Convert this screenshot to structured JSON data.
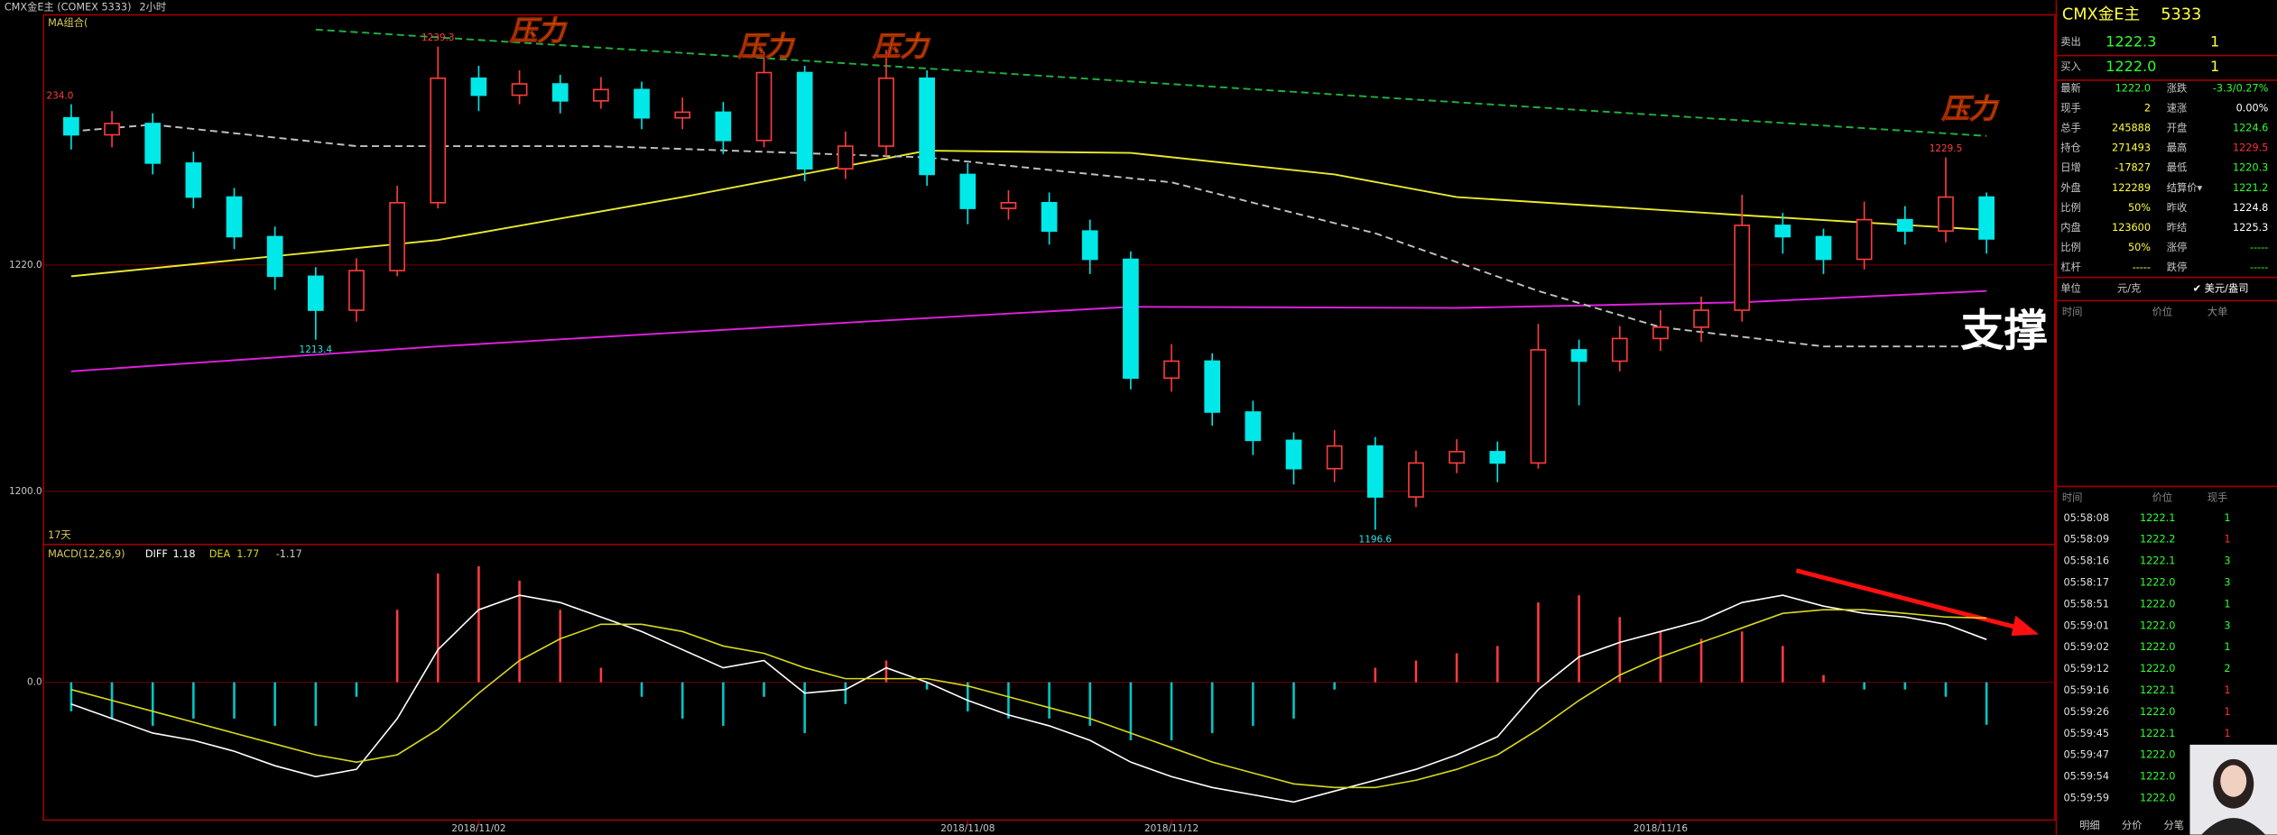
{
  "header": {
    "title": "CMX金E主 (COMEX 5333)",
    "period": "2小时"
  },
  "chart_data": [
    {
      "type": "candlestick",
      "legend_label": "MA组合(",
      "days_label": "17天",
      "side_label": "234.0",
      "ylim": [
        1195.3,
        1242.1
      ],
      "yticks": [
        {
          "value": 1200,
          "label": "1200.0"
        },
        {
          "value": 1220,
          "label": "1220.0"
        }
      ],
      "up_color": "#ff3c3c",
      "down_color": "#00e8e8",
      "categories": [
        null,
        null,
        null,
        null,
        null,
        null,
        null,
        null,
        null,
        null,
        "2018/11/02",
        null,
        null,
        null,
        null,
        null,
        null,
        null,
        null,
        null,
        null,
        null,
        "2018/11/08",
        null,
        null,
        null,
        null,
        "2018/11/12",
        null,
        null,
        null,
        null,
        null,
        null,
        null,
        null,
        null,
        null,
        null,
        "2018/11/16",
        null,
        null,
        null,
        null,
        null,
        null,
        null,
        null
      ],
      "open": [
        1233.0,
        1231.5,
        1232.5,
        1229.0,
        1226.0,
        1222.5,
        1219.0,
        1216.0,
        1219.5,
        1225.5,
        1236.5,
        1235.0,
        1236.0,
        1234.5,
        1235.5,
        1233.0,
        1233.5,
        1231.0,
        1237.0,
        1228.5,
        1230.5,
        1236.5,
        1228.0,
        1225.0,
        1225.5,
        1223.0,
        1220.5,
        1210.0,
        1211.5,
        1207.0,
        1204.5,
        1202.0,
        1204.0,
        1199.5,
        1202.5,
        1203.5,
        1202.5,
        1212.5,
        1211.5,
        1213.5,
        1214.5,
        1216.0,
        1223.5,
        1222.5,
        1220.5,
        1224.0,
        1223.0,
        1226.0
      ],
      "high": [
        1234.2,
        1233.6,
        1233.4,
        1230.0,
        1226.8,
        1223.4,
        1219.8,
        1220.6,
        1227.0,
        1239.3,
        1237.6,
        1237.2,
        1236.8,
        1236.6,
        1236.2,
        1234.8,
        1234.4,
        1238.8,
        1237.6,
        1231.8,
        1239.0,
        1237.2,
        1229.0,
        1226.6,
        1226.4,
        1224.0,
        1221.2,
        1213.0,
        1212.2,
        1208.0,
        1205.2,
        1205.4,
        1204.8,
        1203.6,
        1204.6,
        1204.4,
        1214.8,
        1213.4,
        1214.6,
        1216.0,
        1217.2,
        1226.2,
        1224.6,
        1223.2,
        1225.6,
        1225.2,
        1229.5,
        1226.4
      ],
      "low": [
        1230.2,
        1230.4,
        1228.0,
        1225.0,
        1221.4,
        1217.8,
        1213.4,
        1215.0,
        1219.0,
        1225.0,
        1233.6,
        1234.2,
        1233.4,
        1233.8,
        1232.0,
        1232.0,
        1229.8,
        1230.4,
        1227.4,
        1227.6,
        1229.6,
        1227.0,
        1223.6,
        1224.0,
        1221.8,
        1219.2,
        1209.0,
        1208.8,
        1205.8,
        1203.2,
        1200.6,
        1200.8,
        1196.6,
        1198.6,
        1201.6,
        1200.8,
        1202.0,
        1207.6,
        1210.6,
        1212.4,
        1213.2,
        1215.0,
        1221.0,
        1219.2,
        1219.6,
        1221.8,
        1222.0,
        1221.0
      ],
      "close": [
        1231.5,
        1232.5,
        1229.0,
        1226.0,
        1222.5,
        1219.0,
        1216.0,
        1219.5,
        1225.5,
        1236.5,
        1235.0,
        1236.0,
        1234.5,
        1235.5,
        1233.0,
        1233.5,
        1231.0,
        1237.0,
        1228.5,
        1230.5,
        1236.5,
        1228.0,
        1225.0,
        1225.5,
        1223.0,
        1220.5,
        1210.0,
        1211.5,
        1207.0,
        1204.5,
        1202.0,
        1204.0,
        1199.5,
        1202.5,
        1203.5,
        1202.5,
        1212.5,
        1211.5,
        1213.5,
        1214.5,
        1216.0,
        1223.5,
        1222.5,
        1220.5,
        1224.0,
        1223.0,
        1226.0,
        1222.3
      ],
      "lines": [
        {
          "color": "#e8e830",
          "dash": false,
          "x": [
            0,
            9,
            15,
            21,
            26,
            31,
            34,
            41,
            47
          ],
          "values": [
            1219.0,
            1222.2,
            1226.0,
            1230.1,
            1229.9,
            1228.0,
            1226.0,
            1224.4,
            1223.1
          ]
        },
        {
          "color": "#e020e0",
          "dash": false,
          "x": [
            0,
            9,
            20,
            26,
            34,
            41,
            47
          ],
          "values": [
            1210.6,
            1212.8,
            1215.1,
            1216.3,
            1216.2,
            1216.7,
            1217.7
          ]
        },
        {
          "color": "#c0c0c0",
          "dash": true,
          "x": [
            0,
            2,
            7,
            13,
            21,
            27,
            32,
            36,
            39,
            43,
            47
          ],
          "values": [
            1231.8,
            1232.4,
            1230.5,
            1230.5,
            1229.5,
            1227.3,
            1222.8,
            1217.7,
            1214.5,
            1212.8,
            1212.8
          ]
        },
        {
          "color": "#20b040",
          "dash": true,
          "x": [
            6,
            47
          ],
          "values": [
            1240.8,
            1231.4
          ]
        }
      ],
      "annotations": [
        "压力",
        "压力",
        "压力",
        "压力",
        "支撑"
      ]
    },
    {
      "type": "macd",
      "title": "MACD(12,26,9)",
      "ylim": [
        -3.8,
        3.68
      ],
      "yticks": [
        {
          "value": 0,
          "label": "0.0"
        }
      ],
      "up_color": "#ff3c3c",
      "down_color": "#00c8c8",
      "histogram": [
        -0.8,
        -1.0,
        -1.2,
        -1.0,
        -1.0,
        -1.2,
        -1.2,
        -0.4,
        2.0,
        3.0,
        3.2,
        2.8,
        2.0,
        0.4,
        -0.4,
        -1.0,
        -1.2,
        -0.4,
        -1.4,
        -0.6,
        0.6,
        -0.2,
        -0.8,
        -1.0,
        -1.0,
        -1.2,
        -1.6,
        -1.6,
        -1.4,
        -1.2,
        -1.0,
        -0.2,
        0.4,
        0.6,
        0.8,
        1.0,
        2.2,
        2.4,
        1.8,
        1.4,
        1.2,
        1.4,
        1.0,
        0.2,
        -0.2,
        -0.2,
        -0.4,
        -1.17
      ],
      "series": [
        {
          "name": "DIFF",
          "color": "#ffffff",
          "values": [
            -0.6,
            -1.0,
            -1.4,
            -1.6,
            -1.9,
            -2.3,
            -2.6,
            -2.4,
            -1.0,
            0.9,
            2.0,
            2.4,
            2.2,
            1.8,
            1.4,
            0.9,
            0.4,
            0.6,
            -0.3,
            -0.2,
            0.4,
            0.0,
            -0.5,
            -0.9,
            -1.2,
            -1.6,
            -2.2,
            -2.6,
            -2.9,
            -3.1,
            -3.3,
            -3.0,
            -2.7,
            -2.4,
            -2.0,
            -1.5,
            -0.2,
            0.7,
            1.1,
            1.4,
            1.7,
            2.2,
            2.4,
            2.1,
            1.9,
            1.8,
            1.6,
            1.18
          ]
        },
        {
          "name": "DEA",
          "color": "#d8d820",
          "values": [
            -0.2,
            -0.5,
            -0.8,
            -1.1,
            -1.4,
            -1.7,
            -2.0,
            -2.2,
            -2.0,
            -1.3,
            -0.3,
            0.6,
            1.2,
            1.6,
            1.6,
            1.4,
            1.0,
            0.8,
            0.4,
            0.1,
            0.1,
            0.1,
            -0.1,
            -0.4,
            -0.7,
            -1.0,
            -1.4,
            -1.8,
            -2.2,
            -2.5,
            -2.8,
            -2.9,
            -2.9,
            -2.7,
            -2.4,
            -2.0,
            -1.3,
            -0.5,
            0.2,
            0.7,
            1.1,
            1.5,
            1.9,
            2.0,
            2.0,
            1.9,
            1.8,
            1.77
          ]
        }
      ]
    }
  ],
  "quote": {
    "title": "CMX金E主",
    "code": "5333",
    "ask": [
      "卖出",
      "1222.3",
      "1"
    ],
    "bid": [
      "买入",
      "1222.0",
      "1"
    ],
    "rows": [
      [
        "最新",
        "1222.0",
        "涨跌",
        "-3.3/0.27%"
      ],
      [
        "现手",
        "2",
        "速涨",
        "0.00%"
      ],
      [
        "总手",
        "245888",
        "开盘",
        "1224.6"
      ],
      [
        "持仓",
        "271493",
        "最高",
        "1229.5"
      ],
      [
        "日增",
        "-17827",
        "最低",
        "1220.3"
      ],
      [
        "外盘",
        "122289",
        "结算价▾",
        "1221.2"
      ],
      [
        "比例",
        "50%",
        "昨收",
        "1224.8"
      ],
      [
        "内盘",
        "123600",
        "昨结",
        "1225.3"
      ],
      [
        "比例",
        "50%",
        "涨停",
        "-----"
      ],
      [
        "杠杆",
        "-----",
        "跌停",
        "-----"
      ]
    ],
    "row_colors": [
      [
        "#30ff30",
        "#30ff30"
      ],
      [
        "#ffff40",
        "#ffffff"
      ],
      [
        "#ffff40",
        "#30ff30"
      ],
      [
        "#ffff40",
        "#ff3030"
      ],
      [
        "#ffff40",
        "#30ff30"
      ],
      [
        "#ffff40",
        "#30ff30"
      ],
      [
        "#ffff40",
        "#ffffff"
      ],
      [
        "#ffff40",
        "#ffffff"
      ],
      [
        "#ffff40",
        "#30ff30"
      ],
      [
        "#ffff40",
        "#30ff30"
      ]
    ],
    "unit": [
      "单位",
      "元/克",
      "✔ 美元/盎司"
    ],
    "big_header": [
      "时间",
      "价位",
      "大单"
    ]
  },
  "trades": {
    "header": [
      "时间",
      "价位",
      "现手"
    ],
    "rows": [
      [
        "05:58:08",
        "1222.1",
        "1"
      ],
      [
        "05:58:09",
        "1222.2",
        "1"
      ],
      [
        "05:58:16",
        "1222.1",
        "3"
      ],
      [
        "05:58:17",
        "1222.0",
        "3"
      ],
      [
        "05:58:51",
        "1222.0",
        "1"
      ],
      [
        "05:59:01",
        "1222.0",
        "3"
      ],
      [
        "05:59:02",
        "1222.0",
        "1"
      ],
      [
        "05:59:12",
        "1222.0",
        "2"
      ],
      [
        "05:59:16",
        "1222.1",
        "1"
      ],
      [
        "05:59:26",
        "1222.0",
        "1"
      ],
      [
        "05:59:45",
        "1222.1",
        "1"
      ],
      [
        "05:59:47",
        "1222.0",
        ""
      ],
      [
        "05:59:54",
        "1222.0",
        ""
      ],
      [
        "05:59:59",
        "1222.0",
        ""
      ]
    ],
    "vol_colors": [
      "#30ff30",
      "#ff3030",
      "#30ff30",
      "#30ff30",
      "#30ff30",
      "#30ff30",
      "#30ff30",
      "#30ff30",
      "#ff3030",
      "#ff3030",
      "#ff3030",
      "#30ff30",
      "#30ff30",
      "#30ff30"
    ]
  },
  "tabs": [
    "明细",
    "分价",
    "分笔"
  ]
}
